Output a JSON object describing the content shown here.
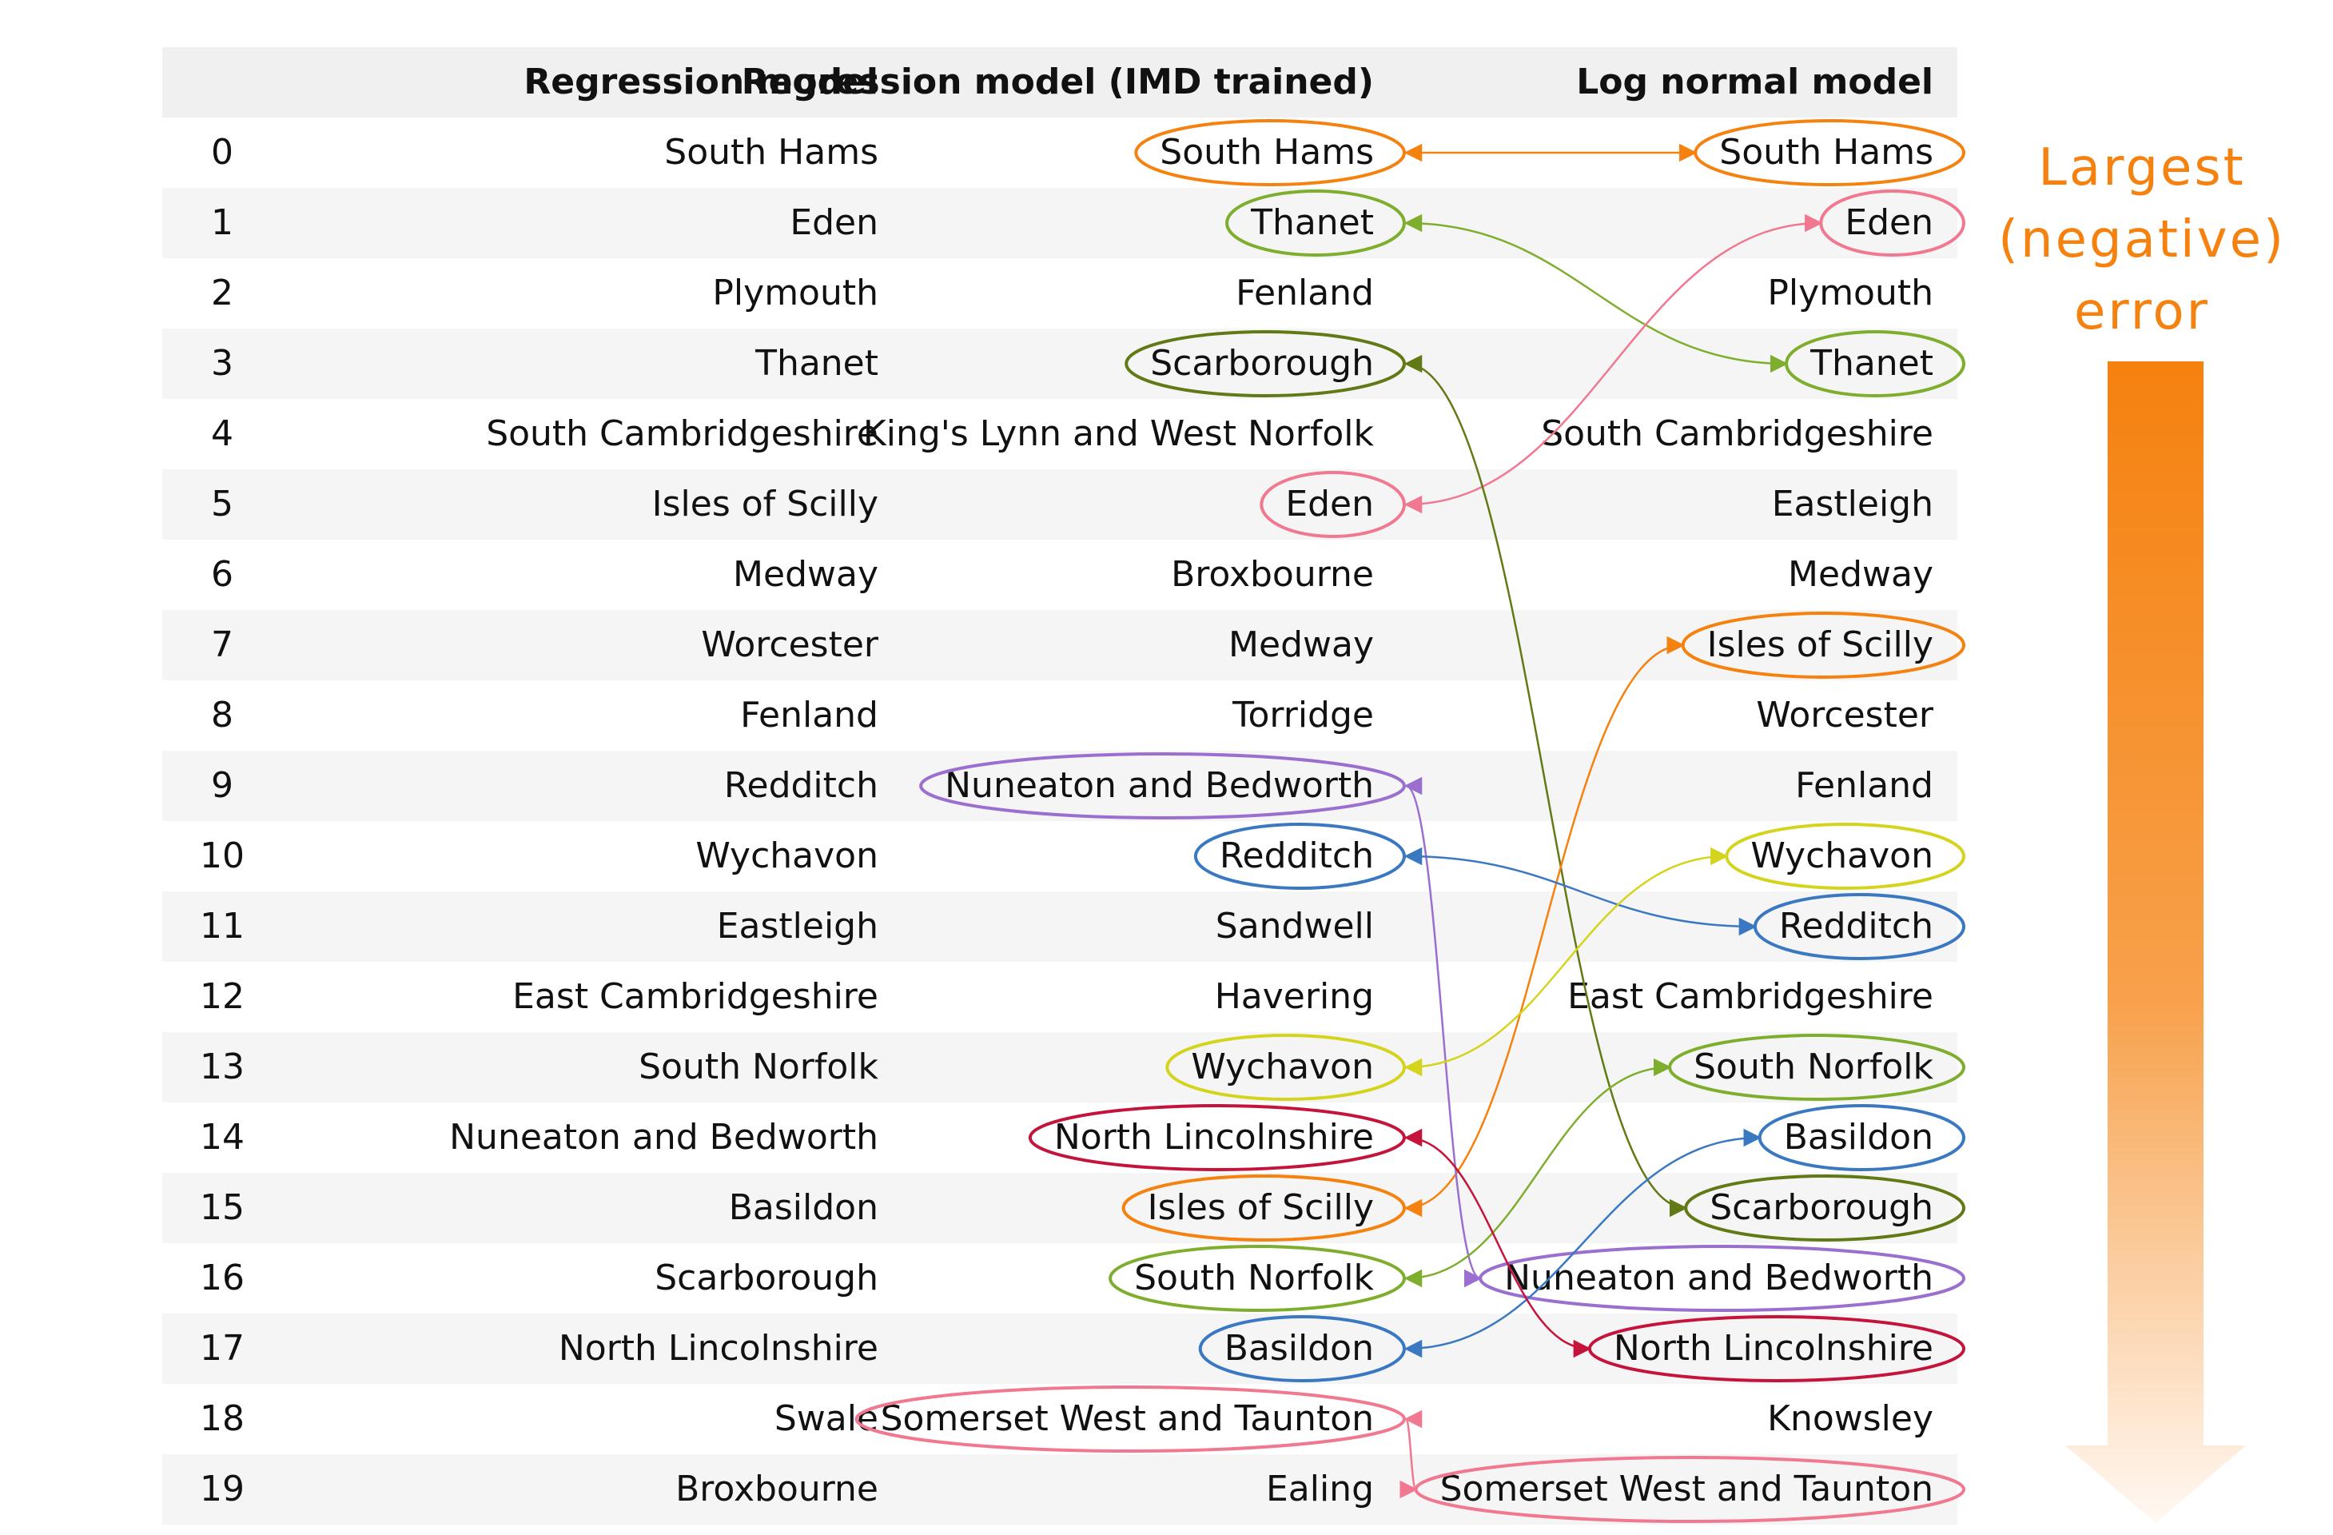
{
  "columns": {
    "index": "",
    "regression": "Regression model",
    "imd": "Regression model (IMD trained)",
    "lognormal": "Log normal model"
  },
  "rows": [
    {
      "index": "0",
      "regression": "South Hams",
      "imd": "South Hams",
      "lognormal": "South Hams"
    },
    {
      "index": "1",
      "regression": "Eden",
      "imd": "Thanet",
      "lognormal": "Eden"
    },
    {
      "index": "2",
      "regression": "Plymouth",
      "imd": "Fenland",
      "lognormal": "Plymouth"
    },
    {
      "index": "3",
      "regression": "Thanet",
      "imd": "Scarborough",
      "lognormal": "Thanet"
    },
    {
      "index": "4",
      "regression": "South Cambridgeshire",
      "imd": "King's Lynn and West Norfolk",
      "lognormal": "South Cambridgeshire"
    },
    {
      "index": "5",
      "regression": "Isles of Scilly",
      "imd": "Eden",
      "lognormal": "Eastleigh"
    },
    {
      "index": "6",
      "regression": "Medway",
      "imd": "Broxbourne",
      "lognormal": "Medway"
    },
    {
      "index": "7",
      "regression": "Worcester",
      "imd": "Medway",
      "lognormal": "Isles of Scilly"
    },
    {
      "index": "8",
      "regression": "Fenland",
      "imd": "Torridge",
      "lognormal": "Worcester"
    },
    {
      "index": "9",
      "regression": "Redditch",
      "imd": "Nuneaton and Bedworth",
      "lognormal": "Fenland"
    },
    {
      "index": "10",
      "regression": "Wychavon",
      "imd": "Redditch",
      "lognormal": "Wychavon"
    },
    {
      "index": "11",
      "regression": "Eastleigh",
      "imd": "Sandwell",
      "lognormal": "Redditch"
    },
    {
      "index": "12",
      "regression": "East Cambridgeshire",
      "imd": "Havering",
      "lognormal": "East Cambridgeshire"
    },
    {
      "index": "13",
      "regression": "South Norfolk",
      "imd": "Wychavon",
      "lognormal": "South Norfolk"
    },
    {
      "index": "14",
      "regression": "Nuneaton and Bedworth",
      "imd": "North Lincolnshire",
      "lognormal": "Basildon"
    },
    {
      "index": "15",
      "regression": "Basildon",
      "imd": "Isles of Scilly",
      "lognormal": "Scarborough"
    },
    {
      "index": "16",
      "regression": "Scarborough",
      "imd": "South Norfolk",
      "lognormal": "Nuneaton and Bedworth"
    },
    {
      "index": "17",
      "regression": "North Lincolnshire",
      "imd": "Basildon",
      "lognormal": "North Lincolnshire"
    },
    {
      "index": "18",
      "regression": "Swale",
      "imd": "Somerset West and Taunton",
      "lognormal": "Knowsley"
    },
    {
      "index": "19",
      "regression": "Broxbourne",
      "imd": "Ealing",
      "lognormal": "Somerset West and Taunton"
    }
  ],
  "side_label": {
    "line1": "Largest",
    "line2": "(negative)",
    "line3": "error"
  },
  "links": [
    {
      "name": "South Hams",
      "imd_row": 0,
      "log_row": 0,
      "color": "#f5810f"
    },
    {
      "name": "Thanet",
      "imd_row": 1,
      "log_row": 3,
      "color": "#7fae2e"
    },
    {
      "name": "Eden",
      "imd_row": 5,
      "log_row": 1,
      "color": "#f07890"
    },
    {
      "name": "Scarborough",
      "imd_row": 3,
      "log_row": 15,
      "color": "#627a16"
    },
    {
      "name": "Isles of Scilly",
      "imd_row": 15,
      "log_row": 7,
      "color": "#f5810f"
    },
    {
      "name": "Nuneaton and Bedworth",
      "imd_row": 9,
      "log_row": 16,
      "color": "#9b6fcf"
    },
    {
      "name": "Redditch",
      "imd_row": 10,
      "log_row": 11,
      "color": "#3a78c2"
    },
    {
      "name": "Wychavon",
      "imd_row": 13,
      "log_row": 10,
      "color": "#d4d41e"
    },
    {
      "name": "South Norfolk",
      "imd_row": 16,
      "log_row": 13,
      "color": "#7fae2e"
    },
    {
      "name": "Basildon",
      "imd_row": 17,
      "log_row": 14,
      "color": "#3a78c2"
    },
    {
      "name": "North Lincolnshire",
      "imd_row": 14,
      "log_row": 17,
      "color": "#c4143c"
    },
    {
      "name": "Somerset West and Taunton",
      "imd_row": 18,
      "log_row": 19,
      "color": "#f07890"
    }
  ],
  "colors": {
    "header_bg": "#f0f0f0",
    "stripe_bg": "#f5f5f5",
    "label_color": "#f5810f"
  }
}
